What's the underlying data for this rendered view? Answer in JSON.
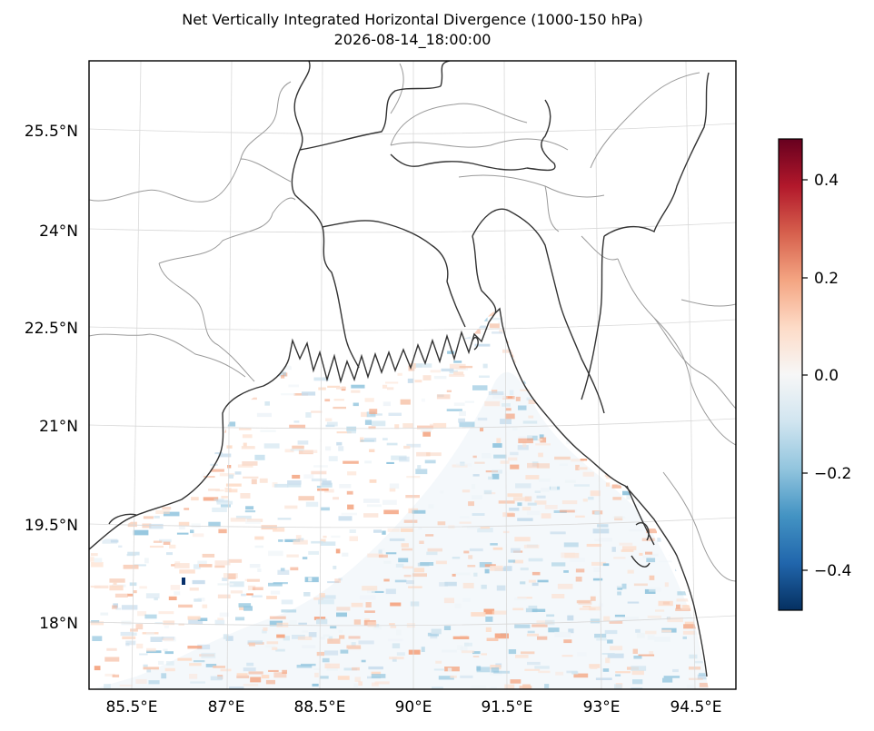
{
  "title": "Net Vertically Integrated Horizontal Divergence (1000-150 hPa)",
  "subtitle": "2026-08-14_18:00:00",
  "map": {
    "lon_ticks": [
      "85.5°E",
      "87°E",
      "88.5°E",
      "90°E",
      "91.5°E",
      "93°E",
      "94.5°E"
    ],
    "lat_ticks": [
      "25.5°N",
      "24°N",
      "22.5°N",
      "21°N",
      "19.5°N",
      "18°N"
    ],
    "extent": {
      "lon": [
        84.8,
        94.9
      ],
      "lat": [
        16.9,
        26.6
      ]
    },
    "field": "divergence over Bay of Bengal (ocean only)",
    "colormap": "RdBu_r"
  },
  "colorbar": {
    "ticks": [
      "0.4",
      "0.2",
      "0.0",
      "−0.2",
      "−0.4"
    ],
    "range": [
      -0.48,
      0.48
    ],
    "colors": [
      "#053061",
      "#2166ac",
      "#4393c3",
      "#92c5de",
      "#d1e5f0",
      "#f7f7f7",
      "#fddbc7",
      "#f4a582",
      "#d6604d",
      "#b2182b",
      "#67001f"
    ]
  }
}
